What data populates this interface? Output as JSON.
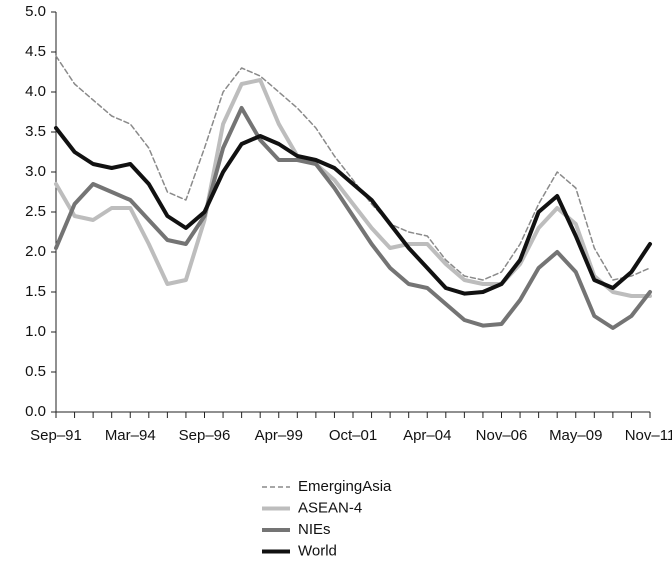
{
  "chart_data": {
    "type": "line",
    "categories": [
      "Sep–91",
      null,
      null,
      null,
      "Mar–94",
      null,
      null,
      null,
      "Sep–96",
      null,
      null,
      null,
      "Apr–99",
      null,
      null,
      null,
      "Oct–01",
      null,
      null,
      null,
      "Apr–04",
      null,
      null,
      null,
      "Nov–06",
      null,
      null,
      null,
      "May–09",
      null,
      null,
      null,
      "Nov–11"
    ],
    "series": [
      {
        "name": "EmergingAsia",
        "color": "#8a8a8a",
        "dashed": true,
        "values": [
          4.45,
          4.1,
          3.9,
          3.7,
          3.6,
          3.3,
          2.75,
          2.65,
          3.3,
          4.0,
          4.3,
          4.2,
          4.0,
          3.8,
          3.55,
          3.2,
          2.9,
          2.6,
          2.35,
          2.25,
          2.2,
          1.9,
          1.7,
          1.65,
          1.75,
          2.1,
          2.6,
          3.0,
          2.8,
          2.05,
          1.65,
          1.7,
          1.8
        ]
      },
      {
        "name": "ASEAN-4",
        "color": "#bdbdbd",
        "dashed": false,
        "values": [
          2.85,
          2.45,
          2.4,
          2.55,
          2.55,
          2.1,
          1.6,
          1.65,
          2.4,
          3.6,
          4.1,
          4.15,
          3.6,
          3.2,
          3.1,
          2.9,
          2.6,
          2.3,
          2.05,
          2.1,
          2.1,
          1.85,
          1.65,
          1.6,
          1.6,
          1.85,
          2.3,
          2.55,
          2.35,
          1.7,
          1.5,
          1.45,
          1.45
        ]
      },
      {
        "name": "NIEs",
        "color": "#747474",
        "dashed": false,
        "values": [
          2.05,
          2.6,
          2.85,
          2.75,
          2.65,
          2.4,
          2.15,
          2.1,
          2.45,
          3.3,
          3.8,
          3.4,
          3.15,
          3.15,
          3.1,
          2.8,
          2.45,
          2.1,
          1.8,
          1.6,
          1.55,
          1.35,
          1.15,
          1.08,
          1.1,
          1.4,
          1.8,
          2.0,
          1.75,
          1.2,
          1.05,
          1.2,
          1.5
        ]
      },
      {
        "name": "World",
        "color": "#111111",
        "dashed": false,
        "values": [
          3.55,
          3.25,
          3.1,
          3.05,
          3.1,
          2.85,
          2.45,
          2.3,
          2.5,
          3.0,
          3.35,
          3.45,
          3.35,
          3.2,
          3.15,
          3.05,
          2.85,
          2.65,
          2.35,
          2.05,
          1.8,
          1.55,
          1.48,
          1.5,
          1.6,
          1.9,
          2.5,
          2.7,
          2.2,
          1.65,
          1.55,
          1.75,
          2.1
        ]
      }
    ],
    "ylim": [
      0,
      5
    ],
    "yticks": [
      {
        "value": 0,
        "label": "0.0"
      },
      0.5,
      {
        "value": 1,
        "label": "1.0"
      },
      1.5,
      {
        "value": 2,
        "label": "2.0"
      },
      2.5,
      {
        "value": 3,
        "label": "3.0"
      },
      3.5,
      {
        "value": 4,
        "label": "4.0"
      },
      4.5,
      {
        "value": 5,
        "label": "5.0"
      }
    ],
    "grid": false,
    "legend": "bottom"
  }
}
